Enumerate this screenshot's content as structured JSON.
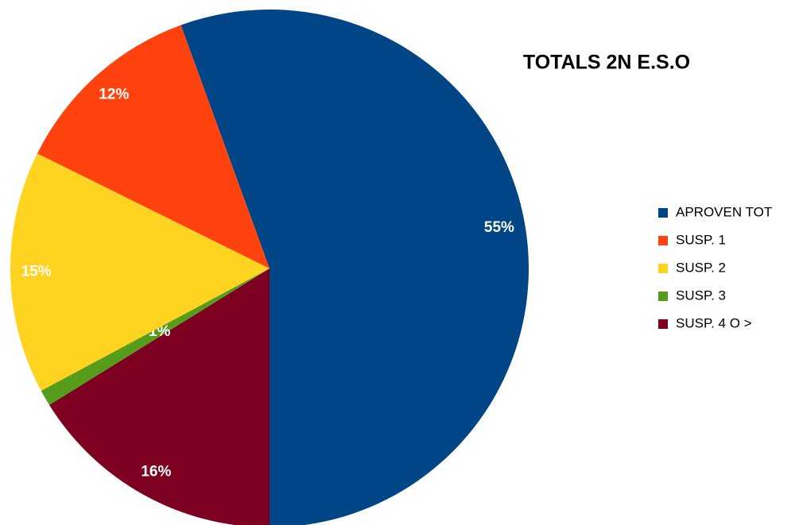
{
  "chart_data": {
    "type": "pie",
    "title": "TOTALS 2N E.S.O",
    "categories": [
      "APROVEN TOT",
      "SUSP. 1",
      "SUSP. 2",
      "SUSP. 3",
      "SUSP. 4 O >"
    ],
    "values": [
      55,
      12,
      15,
      1,
      16
    ],
    "value_labels": [
      "55%",
      "12%",
      "15%",
      "1%",
      "16%"
    ],
    "colors": [
      "#004586",
      "#ff420e",
      "#ffd320",
      "#579d1c",
      "#7e0021"
    ],
    "legend": "right"
  }
}
